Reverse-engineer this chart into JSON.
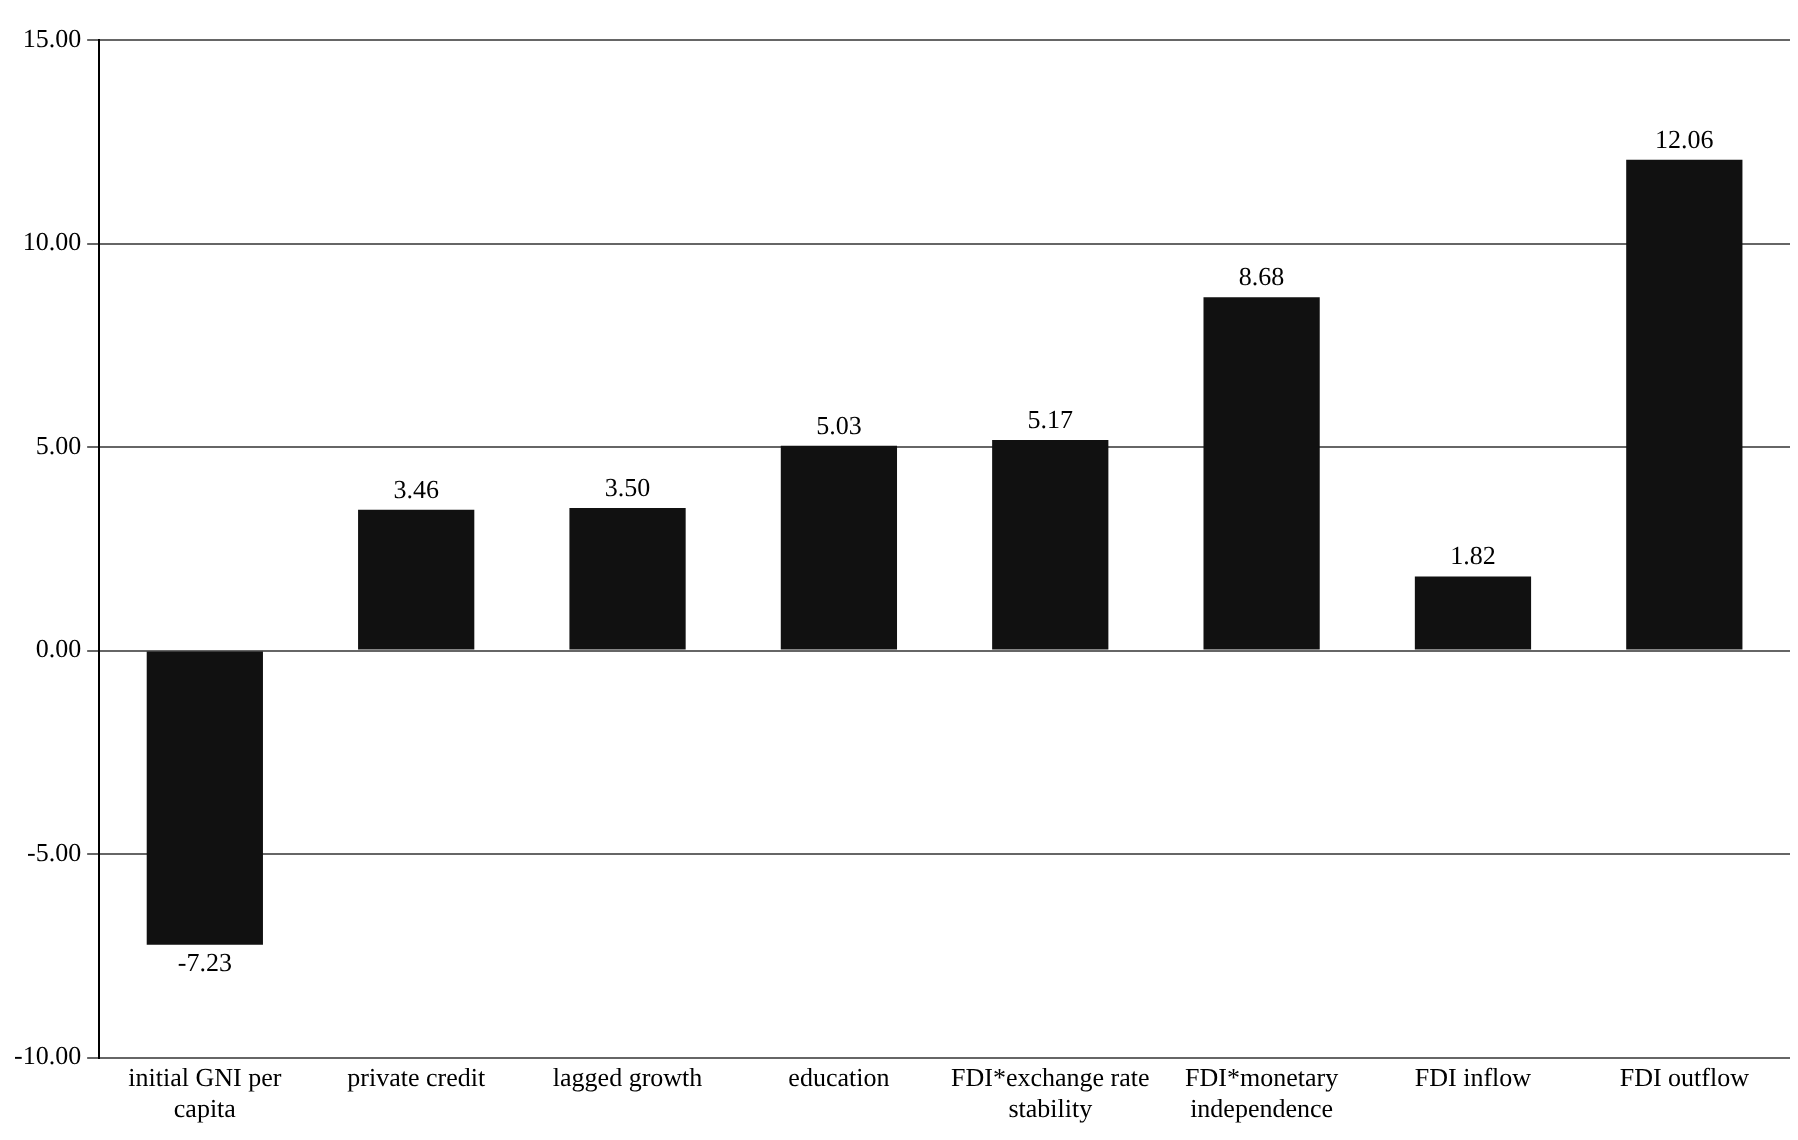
{
  "chart_data": {
    "type": "bar",
    "categories": [
      "initial GNI per capita",
      "private credit",
      "lagged growth",
      "education",
      "FDI*exchange rate stability",
      "FDI*monetary independence",
      "FDI inflow",
      "FDI outflow"
    ],
    "values": [
      -7.23,
      3.46,
      3.5,
      5.03,
      5.17,
      8.68,
      1.82,
      12.06
    ],
    "value_labels": [
      "-7.23",
      "3.46",
      "3.50",
      "5.03",
      "5.17",
      "8.68",
      "1.82",
      "12.06"
    ],
    "color": "#111111",
    "ylim": [
      -10,
      15
    ],
    "yticks": [
      {
        "value": -10,
        "label": "-10.00"
      },
      {
        "value": -5,
        "label": "-5.00"
      },
      {
        "value": 0,
        "label": "0.00"
      },
      {
        "value": 5,
        "label": "5.00"
      },
      {
        "value": 10,
        "label": "10.00"
      },
      {
        "value": 15,
        "label": "15.00"
      }
    ],
    "grid": "y"
  }
}
